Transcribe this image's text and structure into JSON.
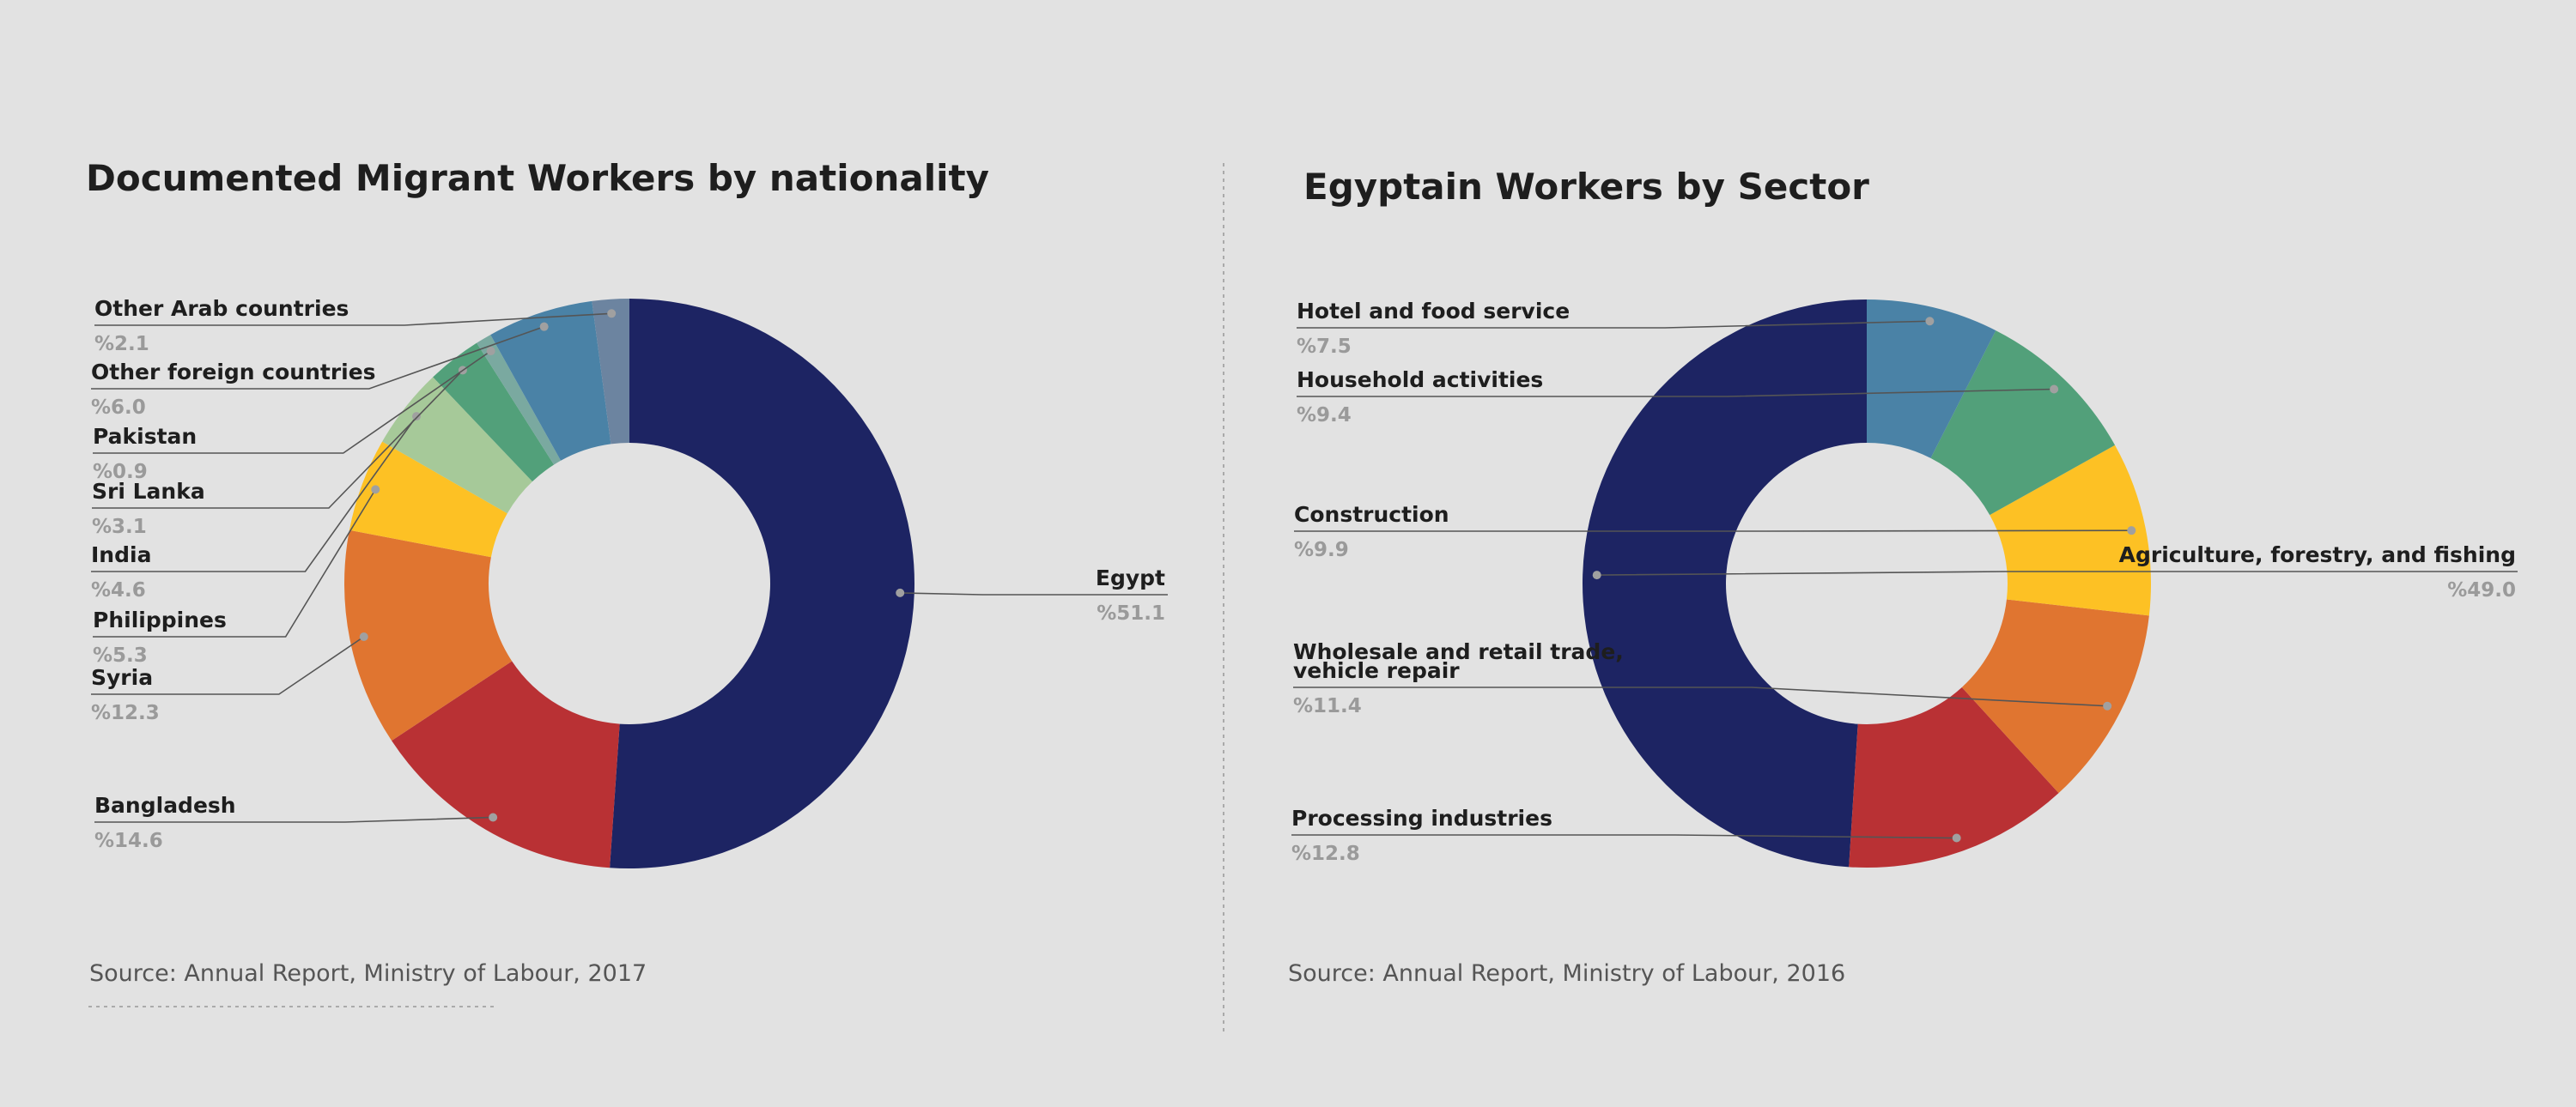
{
  "chart_data": [
    {
      "type": "pie",
      "donut": true,
      "title": "Documented Migrant Workers by nationality",
      "source": "Source: Annual Report, Ministry of Labour, 2017",
      "slices": [
        {
          "label": "Egypt",
          "value_text": "%51.1",
          "value": 51.1,
          "color": "#1d2463"
        },
        {
          "label": "Bangladesh",
          "value_text": "%14.6",
          "value": 14.6,
          "color": "#b93134"
        },
        {
          "label": "Syria",
          "value_text": "%12.3",
          "value": 12.3,
          "color": "#e07530"
        },
        {
          "label": "Philippines",
          "value_text": "%5.3",
          "value": 5.3,
          "color": "#fdc124"
        },
        {
          "label": "India",
          "value_text": "%4.6",
          "value": 4.6,
          "color": "#a6c999"
        },
        {
          "label": "Sri Lanka",
          "value_text": "%3.1",
          "value": 3.1,
          "color": "#52a07a"
        },
        {
          "label": "Pakistan",
          "value_text": "%0.9",
          "value": 0.9,
          "color": "#7aa9a0"
        },
        {
          "label": "Other foreign countries",
          "value_text": "%6.0",
          "value": 6.0,
          "color": "#4a82a6"
        },
        {
          "label": "Other Arab countries",
          "value_text": "%2.1",
          "value": 2.1,
          "color": "#6c84a0"
        }
      ]
    },
    {
      "type": "pie",
      "donut": true,
      "title": "Egyptain Workers by Sector",
      "source": "Source: Annual Report, Ministry of Labour, 2016",
      "slices": [
        {
          "label": "Agriculture, forestry, and fishing",
          "value_text": "%49.0",
          "value": 49.0,
          "color": "#1d2463"
        },
        {
          "label": "Processing industries",
          "value_text": "%12.8",
          "value": 12.8,
          "color": "#b93134"
        },
        {
          "label": "Wholesale and retail trade, vehicle repair",
          "value_text": "%11.4",
          "value": 11.4,
          "color": "#e07530"
        },
        {
          "label": "Construction",
          "value_text": "%9.9",
          "value": 9.9,
          "color": "#fdc124"
        },
        {
          "label": "Household activities",
          "value_text": "%9.4",
          "value": 9.4,
          "color": "#52a07a"
        },
        {
          "label": "Hotel and food service",
          "value_text": "%7.5",
          "value": 7.5,
          "color": "#4a82a6"
        }
      ]
    }
  ]
}
